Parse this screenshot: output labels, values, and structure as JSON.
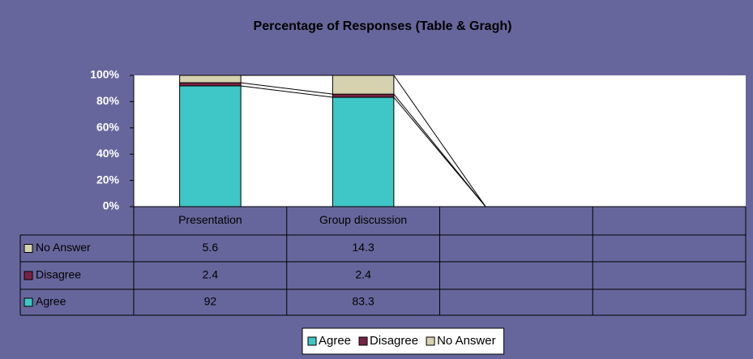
{
  "chart_data": {
    "type": "stacked_bar_100",
    "title": "Percentage of Responses (Table & Gragh)",
    "categories": [
      "Presentation",
      "Group discussion",
      null,
      null
    ],
    "series": [
      {
        "name": "Agree",
        "color": "#3fc6c6",
        "values": [
          92,
          83.3,
          null,
          null
        ]
      },
      {
        "name": "Disagree",
        "color": "#7a2244",
        "values": [
          2.4,
          2.4,
          null,
          null
        ]
      },
      {
        "name": "No Answer",
        "color": "#d6d2b0",
        "values": [
          5.6,
          14.3,
          null,
          null
        ]
      }
    ],
    "ylim": [
      0,
      100
    ],
    "yticks": [
      {
        "value": 0,
        "label": "0%"
      },
      {
        "value": 20,
        "label": "20%"
      },
      {
        "value": 40,
        "label": "40%"
      },
      {
        "value": 60,
        "label": "60%"
      },
      {
        "value": 80,
        "label": "80%"
      },
      {
        "value": 100,
        "label": "100%"
      }
    ],
    "grid": false,
    "legend": "bottom"
  }
}
